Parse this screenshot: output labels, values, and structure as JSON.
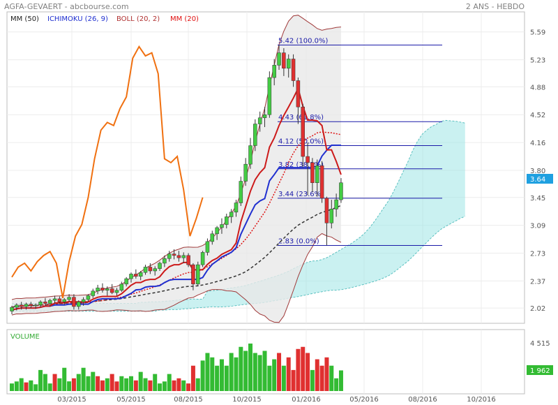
{
  "header": {
    "title": "AGFA-GEVAERT - abcbourse.com",
    "period": "2 ANS - HEBDO"
  },
  "legend": [
    {
      "label": "MM (50)",
      "color": "#202020"
    },
    {
      "label": "ICHIMOKU (26, 9)",
      "color": "#1f2fd0"
    },
    {
      "label": "BOLL (20, 2)",
      "color": "#b03030"
    },
    {
      "label": "MM (20)",
      "color": "#e01010"
    }
  ],
  "volume_panel": {
    "title": "VOLUME",
    "max_tick": "4 515",
    "last_value": "1 962"
  },
  "price_badge": "3.64",
  "colors": {
    "up": "#44cc44",
    "down": "#e03030",
    "cloud": "#9fe5e5",
    "cloud_line": "#5bc0c0",
    "boll": "#a03a3a",
    "boll_fill": "#e8e8e8",
    "mm20": "#dd1111",
    "mm50": "#333333",
    "ichimoku": "#2030d0",
    "osc": "#f07010",
    "fib": "#1a1aa8",
    "badge_price": "#1fa0e0",
    "badge_volume": "#33bb33"
  },
  "chart_data": {
    "type": "candlestick",
    "period": "2 ANS - HEBDO",
    "y_ticks": [
      "5.59",
      "5.23",
      "4.88",
      "4.52",
      "4.16",
      "3.80",
      "3.45",
      "3.09",
      "2.73",
      "2.37",
      "2.02"
    ],
    "ylim": [
      1.85,
      5.75
    ],
    "x_ticks": [
      "03/2015",
      "05/2015",
      "08/2015",
      "10/2015",
      "01/2016",
      "05/2016",
      "08/2016",
      "10/2016"
    ],
    "last_price": "3.64",
    "fibonacci": [
      {
        "label": "5.42  (100.0%)",
        "value": 5.42
      },
      {
        "label": "4.43  (61.8%)",
        "value": 4.43
      },
      {
        "label": "4.12  (50.0%)",
        "value": 4.12
      },
      {
        "label": "3.82  (38.2%)",
        "value": 3.82
      },
      {
        "label": "3.44  (23.6%)",
        "value": 3.44
      },
      {
        "label": "2.83  (0.0%)",
        "value": 2.83
      }
    ],
    "candles": [
      {
        "o": 1.98,
        "h": 2.05,
        "l": 1.94,
        "c": 2.03
      },
      {
        "o": 2.03,
        "h": 2.08,
        "l": 1.99,
        "c": 2.06
      },
      {
        "o": 2.06,
        "h": 2.1,
        "l": 2.0,
        "c": 2.04
      },
      {
        "o": 2.04,
        "h": 2.09,
        "l": 2.0,
        "c": 2.07
      },
      {
        "o": 2.07,
        "h": 2.1,
        "l": 2.02,
        "c": 2.05
      },
      {
        "o": 2.05,
        "h": 2.08,
        "l": 2.01,
        "c": 2.06
      },
      {
        "o": 2.06,
        "h": 2.12,
        "l": 2.03,
        "c": 2.1
      },
      {
        "o": 2.1,
        "h": 2.15,
        "l": 2.05,
        "c": 2.08
      },
      {
        "o": 2.08,
        "h": 2.14,
        "l": 2.04,
        "c": 2.12
      },
      {
        "o": 2.12,
        "h": 2.18,
        "l": 2.08,
        "c": 2.14
      },
      {
        "o": 2.14,
        "h": 2.17,
        "l": 2.08,
        "c": 2.1
      },
      {
        "o": 2.1,
        "h": 2.15,
        "l": 2.06,
        "c": 2.13
      },
      {
        "o": 2.13,
        "h": 2.2,
        "l": 2.1,
        "c": 2.16
      },
      {
        "o": 2.16,
        "h": 2.2,
        "l": 2.0,
        "c": 2.04
      },
      {
        "o": 2.04,
        "h": 2.12,
        "l": 2.0,
        "c": 2.1
      },
      {
        "o": 2.1,
        "h": 2.16,
        "l": 2.05,
        "c": 2.13
      },
      {
        "o": 2.13,
        "h": 2.2,
        "l": 2.1,
        "c": 2.18
      },
      {
        "o": 2.18,
        "h": 2.27,
        "l": 2.15,
        "c": 2.24
      },
      {
        "o": 2.24,
        "h": 2.32,
        "l": 2.2,
        "c": 2.28
      },
      {
        "o": 2.28,
        "h": 2.34,
        "l": 2.22,
        "c": 2.25
      },
      {
        "o": 2.25,
        "h": 2.3,
        "l": 2.18,
        "c": 2.27
      },
      {
        "o": 2.27,
        "h": 2.33,
        "l": 2.2,
        "c": 2.22
      },
      {
        "o": 2.22,
        "h": 2.28,
        "l": 2.18,
        "c": 2.25
      },
      {
        "o": 2.25,
        "h": 2.36,
        "l": 2.23,
        "c": 2.33
      },
      {
        "o": 2.33,
        "h": 2.42,
        "l": 2.3,
        "c": 2.4
      },
      {
        "o": 2.4,
        "h": 2.48,
        "l": 2.35,
        "c": 2.46
      },
      {
        "o": 2.46,
        "h": 2.52,
        "l": 2.4,
        "c": 2.43
      },
      {
        "o": 2.43,
        "h": 2.5,
        "l": 2.38,
        "c": 2.48
      },
      {
        "o": 2.48,
        "h": 2.58,
        "l": 2.45,
        "c": 2.55
      },
      {
        "o": 2.55,
        "h": 2.6,
        "l": 2.46,
        "c": 2.5
      },
      {
        "o": 2.5,
        "h": 2.56,
        "l": 2.44,
        "c": 2.53
      },
      {
        "o": 2.53,
        "h": 2.62,
        "l": 2.5,
        "c": 2.6
      },
      {
        "o": 2.6,
        "h": 2.7,
        "l": 2.55,
        "c": 2.66
      },
      {
        "o": 2.66,
        "h": 2.76,
        "l": 2.62,
        "c": 2.72
      },
      {
        "o": 2.72,
        "h": 2.78,
        "l": 2.65,
        "c": 2.7
      },
      {
        "o": 2.7,
        "h": 2.76,
        "l": 2.62,
        "c": 2.67
      },
      {
        "o": 2.67,
        "h": 2.74,
        "l": 2.6,
        "c": 2.7
      },
      {
        "o": 2.7,
        "h": 2.73,
        "l": 2.55,
        "c": 2.58
      },
      {
        "o": 2.58,
        "h": 2.6,
        "l": 2.25,
        "c": 2.33
      },
      {
        "o": 2.33,
        "h": 2.62,
        "l": 2.3,
        "c": 2.58
      },
      {
        "o": 2.58,
        "h": 2.76,
        "l": 2.55,
        "c": 2.74
      },
      {
        "o": 2.74,
        "h": 2.92,
        "l": 2.7,
        "c": 2.88
      },
      {
        "o": 2.88,
        "h": 3.02,
        "l": 2.84,
        "c": 2.98
      },
      {
        "o": 2.98,
        "h": 3.08,
        "l": 2.9,
        "c": 3.06
      },
      {
        "o": 3.06,
        "h": 3.18,
        "l": 2.98,
        "c": 3.1
      },
      {
        "o": 3.1,
        "h": 3.24,
        "l": 3.05,
        "c": 3.2
      },
      {
        "o": 3.2,
        "h": 3.3,
        "l": 3.12,
        "c": 3.26
      },
      {
        "o": 3.26,
        "h": 3.42,
        "l": 3.2,
        "c": 3.38
      },
      {
        "o": 3.38,
        "h": 3.72,
        "l": 3.34,
        "c": 3.66
      },
      {
        "o": 3.66,
        "h": 3.96,
        "l": 3.6,
        "c": 3.88
      },
      {
        "o": 3.88,
        "h": 4.22,
        "l": 3.82,
        "c": 4.12
      },
      {
        "o": 4.12,
        "h": 4.46,
        "l": 4.05,
        "c": 4.4
      },
      {
        "o": 4.4,
        "h": 4.56,
        "l": 4.3,
        "c": 4.48
      },
      {
        "o": 4.48,
        "h": 4.62,
        "l": 4.36,
        "c": 4.52
      },
      {
        "o": 4.52,
        "h": 5.08,
        "l": 4.48,
        "c": 5.0
      },
      {
        "o": 5.0,
        "h": 5.24,
        "l": 4.9,
        "c": 5.16
      },
      {
        "o": 5.16,
        "h": 5.42,
        "l": 5.1,
        "c": 5.32
      },
      {
        "o": 5.32,
        "h": 5.38,
        "l": 5.02,
        "c": 5.12
      },
      {
        "o": 5.12,
        "h": 5.3,
        "l": 5.0,
        "c": 5.24
      },
      {
        "o": 5.24,
        "h": 5.3,
        "l": 4.88,
        "c": 4.96
      },
      {
        "o": 4.96,
        "h": 5.0,
        "l": 4.4,
        "c": 4.62
      },
      {
        "o": 4.62,
        "h": 4.66,
        "l": 3.84,
        "c": 3.98
      },
      {
        "o": 3.98,
        "h": 4.16,
        "l": 3.48,
        "c": 3.9
      },
      {
        "o": 3.9,
        "h": 3.96,
        "l": 3.52,
        "c": 3.64
      },
      {
        "o": 3.64,
        "h": 3.94,
        "l": 3.46,
        "c": 3.86
      },
      {
        "o": 3.86,
        "h": 3.92,
        "l": 3.38,
        "c": 3.44
      },
      {
        "o": 3.44,
        "h": 3.46,
        "l": 2.83,
        "c": 3.12
      },
      {
        "o": 3.12,
        "h": 3.42,
        "l": 3.05,
        "c": 3.3
      },
      {
        "o": 3.3,
        "h": 3.5,
        "l": 3.2,
        "c": 3.42
      },
      {
        "o": 3.42,
        "h": 3.7,
        "l": 3.38,
        "c": 3.64
      }
    ],
    "volume": {
      "max": 4515,
      "values": [
        {
          "v": 720,
          "up": true
        },
        {
          "v": 910,
          "up": true
        },
        {
          "v": 1220,
          "up": true
        },
        {
          "v": 820,
          "up": false
        },
        {
          "v": 1010,
          "up": true
        },
        {
          "v": 640,
          "up": true
        },
        {
          "v": 2000,
          "up": true
        },
        {
          "v": 1620,
          "up": true
        },
        {
          "v": 720,
          "up": true
        },
        {
          "v": 1620,
          "up": false
        },
        {
          "v": 1210,
          "up": true
        },
        {
          "v": 2210,
          "up": true
        },
        {
          "v": 920,
          "up": true
        },
        {
          "v": 1210,
          "up": false
        },
        {
          "v": 1620,
          "up": true
        },
        {
          "v": 2210,
          "up": true
        },
        {
          "v": 1410,
          "up": true
        },
        {
          "v": 1820,
          "up": true
        },
        {
          "v": 1410,
          "up": false
        },
        {
          "v": 1010,
          "up": false
        },
        {
          "v": 1210,
          "up": true
        },
        {
          "v": 1620,
          "up": false
        },
        {
          "v": 910,
          "up": false
        },
        {
          "v": 1410,
          "up": true
        },
        {
          "v": 1210,
          "up": true
        },
        {
          "v": 1410,
          "up": true
        },
        {
          "v": 1010,
          "up": false
        },
        {
          "v": 1820,
          "up": true
        },
        {
          "v": 1220,
          "up": true
        },
        {
          "v": 1010,
          "up": false
        },
        {
          "v": 1620,
          "up": true
        },
        {
          "v": 720,
          "up": true
        },
        {
          "v": 910,
          "up": true
        },
        {
          "v": 1620,
          "up": true
        },
        {
          "v": 1010,
          "up": false
        },
        {
          "v": 1210,
          "up": false
        },
        {
          "v": 1010,
          "up": true
        },
        {
          "v": 720,
          "up": false
        },
        {
          "v": 2410,
          "up": false
        },
        {
          "v": 1210,
          "up": true
        },
        {
          "v": 2900,
          "up": true
        },
        {
          "v": 3620,
          "up": true
        },
        {
          "v": 3200,
          "up": true
        },
        {
          "v": 2410,
          "up": true
        },
        {
          "v": 3020,
          "up": true
        },
        {
          "v": 2410,
          "up": true
        },
        {
          "v": 3620,
          "up": true
        },
        {
          "v": 3200,
          "up": true
        },
        {
          "v": 4200,
          "up": true
        },
        {
          "v": 3820,
          "up": true
        },
        {
          "v": 4515,
          "up": true
        },
        {
          "v": 3620,
          "up": true
        },
        {
          "v": 3420,
          "up": true
        },
        {
          "v": 3820,
          "up": true
        },
        {
          "v": 2410,
          "up": true
        },
        {
          "v": 3020,
          "up": true
        },
        {
          "v": 3620,
          "up": false
        },
        {
          "v": 2410,
          "up": true
        },
        {
          "v": 3200,
          "up": false
        },
        {
          "v": 2000,
          "up": false
        },
        {
          "v": 4000,
          "up": false
        },
        {
          "v": 4200,
          "up": false
        },
        {
          "v": 3620,
          "up": false
        },
        {
          "v": 2000,
          "up": true
        },
        {
          "v": 3020,
          "up": false
        },
        {
          "v": 2410,
          "up": false
        },
        {
          "v": 3200,
          "up": false
        },
        {
          "v": 2410,
          "up": true
        },
        {
          "v": 1210,
          "up": true
        },
        {
          "v": 1962,
          "up": true
        }
      ]
    },
    "osc": [
      2.42,
      2.55,
      2.6,
      2.5,
      2.62,
      2.7,
      2.75,
      2.6,
      2.15,
      2.62,
      2.95,
      3.1,
      3.45,
      3.95,
      4.32,
      4.42,
      4.38,
      4.6,
      4.75,
      5.25,
      5.4,
      5.28,
      5.32,
      5.05,
      3.95,
      3.9,
      3.98,
      3.55,
      2.95,
      3.18,
      3.45
    ]
  }
}
